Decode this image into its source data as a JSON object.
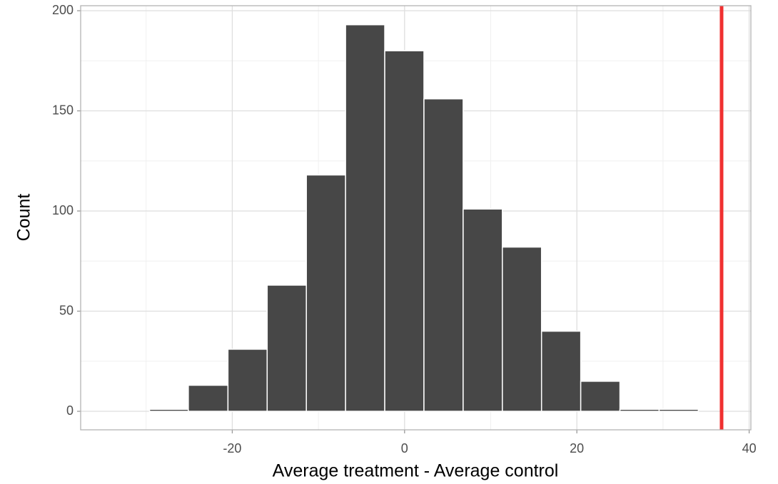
{
  "chart_data": {
    "type": "histogram",
    "x_label": "Average treatment - Average control",
    "y_label": "Count",
    "bins": [
      -34.2,
      -29.6,
      -25.1,
      -20.5,
      -15.95,
      -11.4,
      -6.85,
      -2.3,
      2.25,
      6.8,
      11.35,
      15.9,
      20.45,
      25.0,
      29.55,
      34.1
    ],
    "values": [
      0,
      1,
      13,
      31,
      63,
      118,
      193,
      180,
      156,
      101,
      82,
      40,
      15,
      1,
      1
    ],
    "color": "#474747",
    "vline": 36.8,
    "vline_color": "#f03030",
    "xlim": [
      -37.6,
      40.2
    ],
    "xticks": [
      -20,
      0,
      20,
      40
    ],
    "ylim": [
      -9.25,
      202.5
    ],
    "yticks": [
      0,
      50,
      100,
      150,
      200
    ],
    "grid": true
  }
}
